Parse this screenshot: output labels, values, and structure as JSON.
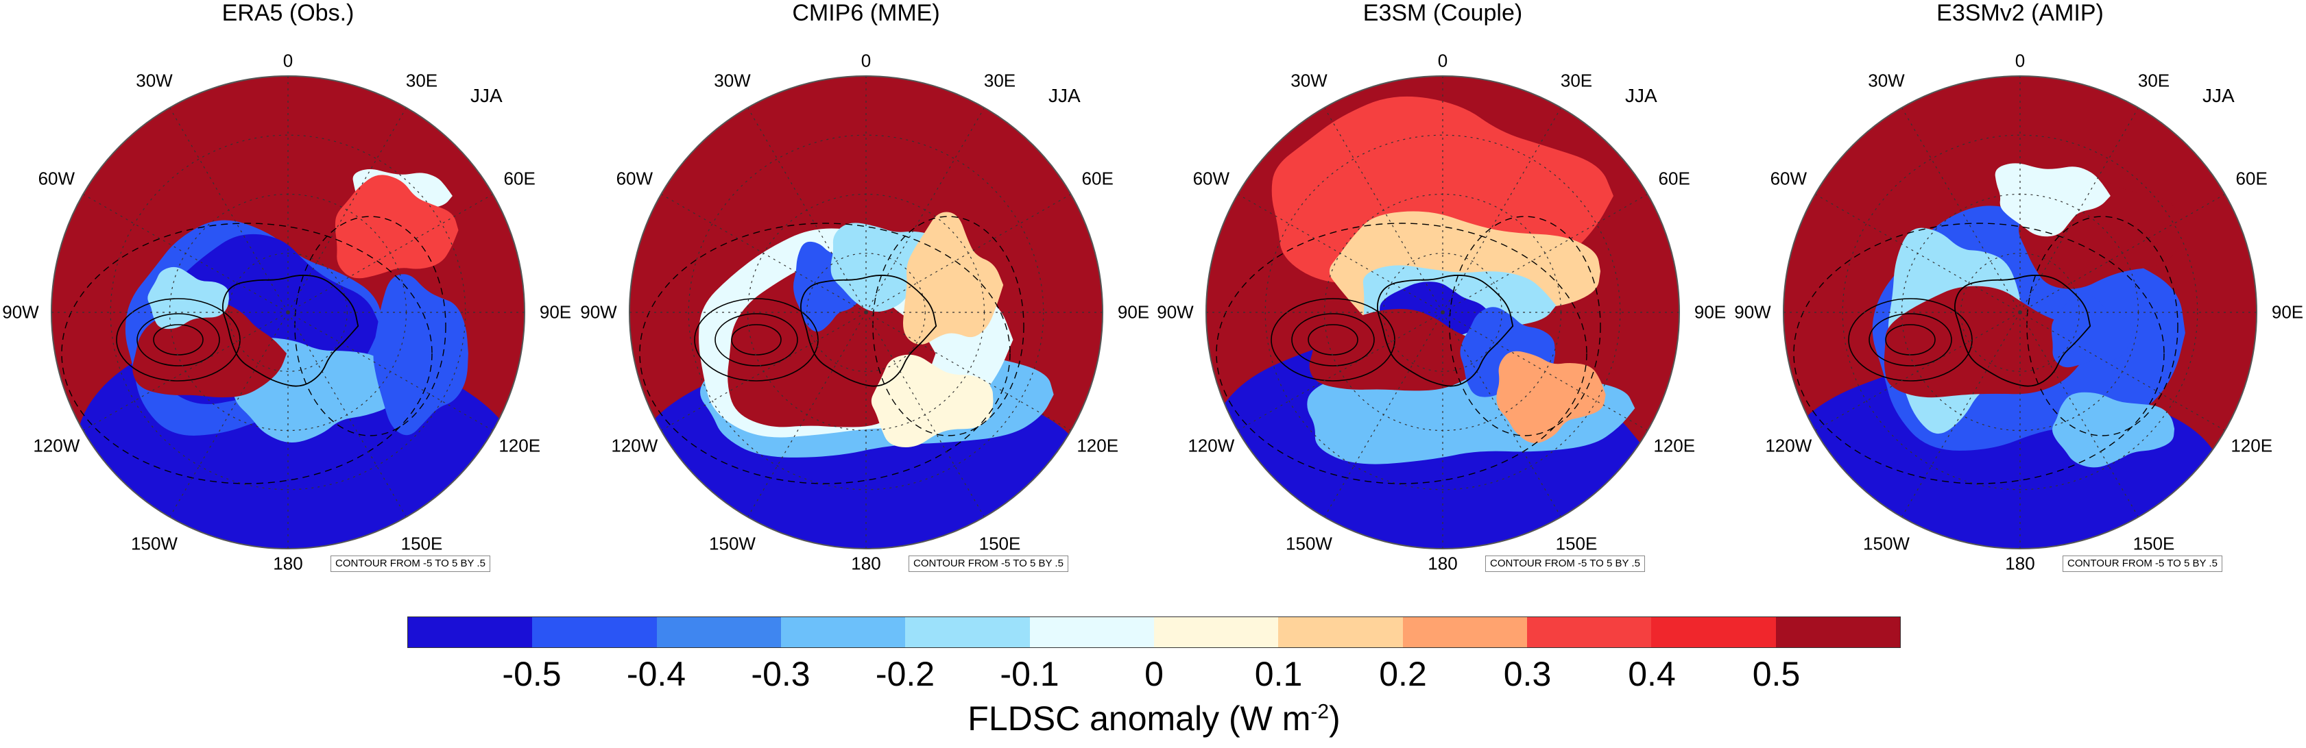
{
  "season": "JJA",
  "contour_note": "CONTOUR FROM -5 TO 5 BY .5",
  "longitude_labels": {
    "lon_0": "0",
    "lon_30e": "30E",
    "lon_60e": "60E",
    "lon_90e": "90E",
    "lon_120e": "120E",
    "lon_150e": "150E",
    "lon_180": "180",
    "lon_150w": "150W",
    "lon_120w": "120W",
    "lon_90w": "90W",
    "lon_60w": "60W",
    "lon_30w": "30W"
  },
  "panels": [
    {
      "title": "ERA5 (Obs.)"
    },
    {
      "title": "CMIP6 (MME)"
    },
    {
      "title": "E3SM (Couple)"
    },
    {
      "title": "E3SMv2 (AMIP)"
    }
  ],
  "colorbar": {
    "title": "FLDSC anomaly (W m",
    "title_exponent": "-2",
    "title_suffix": ")",
    "tick_labels": [
      "-0.5",
      "-0.4",
      "-0.3",
      "-0.2",
      "-0.1",
      "0",
      "0.1",
      "0.2",
      "0.3",
      "0.4",
      "0.5"
    ],
    "colors": [
      "#1a0fd6",
      "#2a55f5",
      "#3f86f0",
      "#6cc0fa",
      "#9ce1fb",
      "#e6fbff",
      "#fff8dc",
      "#ffd39a",
      "#ffa36f",
      "#f54040",
      "#f0262c",
      "#a50e20"
    ]
  },
  "colors": {
    "strong_positive": "#a50e20",
    "strong_negative": "#1a0fd6",
    "background": "#ffffff"
  }
}
